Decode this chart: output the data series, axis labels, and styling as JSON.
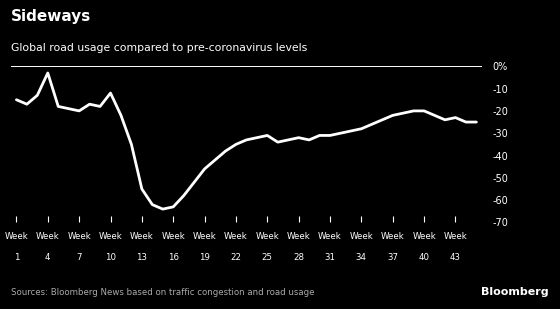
{
  "title": "Sideways",
  "subtitle": "Global road usage compared to pre-coronavirus levels",
  "source": "Sources: Bloomberg News based on traffic congestion and road usage",
  "background_color": "#000000",
  "line_color": "#ffffff",
  "text_color": "#ffffff",
  "source_color": "#aaaaaa",
  "x_weeks": [
    1,
    4,
    7,
    10,
    13,
    16,
    19,
    22,
    25,
    28,
    31,
    34,
    37,
    40,
    43
  ],
  "series_x": [
    1,
    2,
    3,
    4,
    5,
    6,
    7,
    8,
    9,
    10,
    11,
    12,
    13,
    14,
    15,
    16,
    17,
    18,
    19,
    20,
    21,
    22,
    23,
    24,
    25,
    26,
    27,
    28,
    29,
    30,
    31,
    32,
    33,
    34,
    35,
    36,
    37,
    38,
    39,
    40,
    41,
    42,
    43,
    44,
    45
  ],
  "series_y": [
    -15,
    -17,
    -13,
    -3,
    -18,
    -19,
    -20,
    -17,
    -18,
    -12,
    -22,
    -35,
    -55,
    -62,
    -64,
    -63,
    -58,
    -52,
    -46,
    -42,
    -38,
    -35,
    -33,
    -32,
    -31,
    -34,
    -33,
    -32,
    -33,
    -31,
    -31,
    -30,
    -29,
    -28,
    -26,
    -24,
    -22,
    -21,
    -20,
    -20,
    -22,
    -24,
    -23,
    -25,
    -25
  ],
  "ylim": [
    -70,
    2
  ],
  "yticks": [
    0,
    -10,
    -20,
    -30,
    -40,
    -50,
    -60,
    -70
  ],
  "ytick_labels": [
    "0%",
    "-10",
    "-20",
    "-30",
    "-40",
    "-50",
    "-60",
    "-70"
  ],
  "line_width": 2.0,
  "xlim": [
    0.5,
    45.5
  ]
}
